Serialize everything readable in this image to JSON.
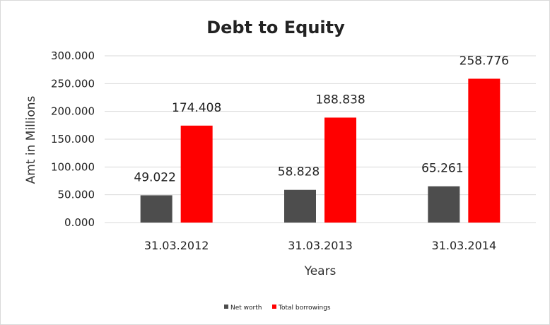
{
  "chart_data": {
    "type": "bar",
    "title": "Debt to Equity",
    "xlabel": "Years",
    "ylabel": "Amt in Millions",
    "categories": [
      "31.03.2012",
      "31.03.2013",
      "31.03.2014"
    ],
    "ylim": [
      0,
      300
    ],
    "yticks": [
      "0.000",
      "50.000",
      "100.000",
      "150.000",
      "200.000",
      "250.000",
      "300.000"
    ],
    "grid": true,
    "legend_position": "bottom",
    "series": [
      {
        "name": "Net worth",
        "color": "#4d4d4d",
        "values": [
          49.022,
          58.828,
          65.261
        ],
        "labels": [
          "49.022",
          "58.828",
          "65.261"
        ]
      },
      {
        "name": "Total borrowings",
        "color": "#ff0000",
        "values": [
          174.408,
          188.838,
          258.776
        ],
        "labels": [
          "174.408",
          "188.838",
          "258.776"
        ]
      }
    ]
  }
}
